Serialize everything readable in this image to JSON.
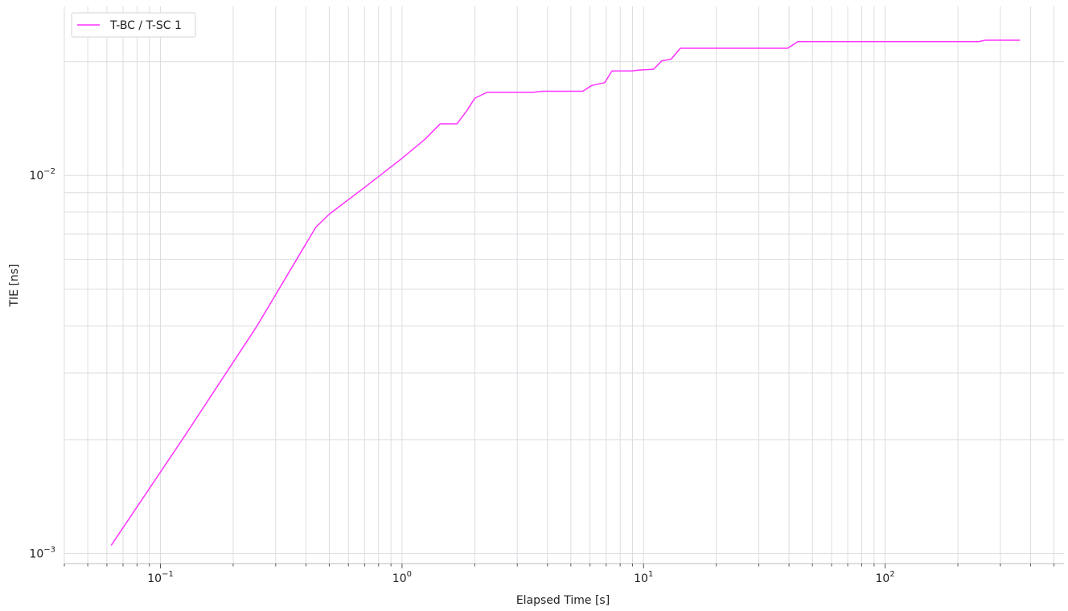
{
  "chart_data": {
    "type": "line",
    "x_scale": "log",
    "y_scale": "log",
    "xlabel": "Elapsed Time [s]",
    "ylabel": "TIE [ns]",
    "xlim": [
      0.04,
      550
    ],
    "ylim": [
      0.00094,
      0.028
    ],
    "x_tick_labels": [
      {
        "base": "10",
        "exp": "−1",
        "value": 0.1
      },
      {
        "base": "10",
        "exp": "0",
        "value": 1
      },
      {
        "base": "10",
        "exp": "1",
        "value": 10
      },
      {
        "base": "10",
        "exp": "2",
        "value": 100
      }
    ],
    "y_tick_labels": [
      {
        "base": "10",
        "exp": "−3",
        "value": 0.001
      },
      {
        "base": "10",
        "exp": "−2",
        "value": 0.01
      }
    ],
    "grid": true,
    "legend_position": "top-left",
    "series": [
      {
        "name": "T-BC / T-SC 1",
        "color": "#ff33ff",
        "x": [
          0.0625,
          0.125,
          0.25,
          0.44,
          0.5,
          0.7,
          1.0,
          1.25,
          1.44,
          1.69,
          1.85,
          2.0,
          2.25,
          3.5,
          3.8,
          5.6,
          6.1,
          6.9,
          7.4,
          8.9,
          9.6,
          11.0,
          11.9,
          13.0,
          14.2,
          39.5,
          43.5,
          244,
          260,
          361
        ],
        "y": [
          0.00105,
          0.00203,
          0.00398,
          0.0073,
          0.0079,
          0.0093,
          0.0111,
          0.0125,
          0.0137,
          0.0137,
          0.0148,
          0.016,
          0.0166,
          0.0166,
          0.0167,
          0.0167,
          0.0173,
          0.0176,
          0.0189,
          0.0189,
          0.019,
          0.0191,
          0.0201,
          0.0203,
          0.0217,
          0.0217,
          0.0226,
          0.0226,
          0.0228,
          0.0228
        ]
      }
    ]
  }
}
